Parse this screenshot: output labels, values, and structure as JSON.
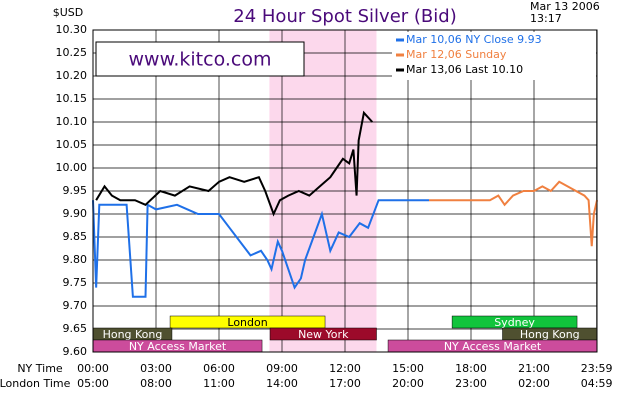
{
  "chart_data": {
    "type": "line",
    "title": "24 Hour Spot Silver (Bid)",
    "y_unit": "$USD",
    "date": "Mar 13 2006",
    "time": "13:17",
    "watermark": "www.kitco.com",
    "xlim": [
      0,
      24
    ],
    "ylim": [
      9.6,
      10.3
    ],
    "yticks": [
      {
        "value": 9.6,
        "label": "9.60"
      },
      9.65,
      {
        "value": 9.7,
        "label": "9.70"
      },
      9.75,
      {
        "value": 9.8,
        "label": "9.80"
      },
      9.85,
      {
        "value": 9.9,
        "label": "9.90"
      },
      9.95,
      {
        "value": 10.0,
        "label": "10.00"
      },
      10.05,
      {
        "value": 10.1,
        "label": "10.10"
      },
      10.15,
      {
        "value": 10.2,
        "label": "10.20"
      },
      10.25,
      {
        "value": 10.3,
        "label": "10.30"
      }
    ],
    "xticks": [
      {
        "value": 0,
        "label": "00:00"
      },
      {
        "value": 3,
        "label": "03:00"
      },
      {
        "value": 6,
        "label": "06:00"
      },
      {
        "value": 9,
        "label": "09:00"
      },
      {
        "value": 12,
        "label": "12:00"
      },
      {
        "value": 15,
        "label": "15:00"
      },
      {
        "value": 18,
        "label": "18:00"
      },
      {
        "value": 21,
        "label": "21:00"
      },
      {
        "value": 23.983,
        "label": "23:59"
      }
    ],
    "x_row_label": "NY Time",
    "x2_row_label": "London Time",
    "x2_tick_labels": [
      "05:00",
      "08:00",
      "11:00",
      "14:00",
      "17:00",
      "20:00",
      "23:00",
      "02:00",
      "04:59"
    ],
    "grid": true,
    "highlight": [
      8.4,
      13.5
    ],
    "series": [
      {
        "name": "Mar 10,06 NY Close 9.93",
        "color": "#1f70e8",
        "x": [
          0,
          0.15,
          0.3,
          1.6,
          1.9,
          2.5,
          2.6,
          3.0,
          4.0,
          4.5,
          5.0,
          6.0,
          6.5,
          7.0,
          7.5,
          8.0,
          8.3,
          8.5,
          8.8,
          9.0,
          9.3,
          9.6,
          9.9,
          10.1,
          10.5,
          10.9,
          11.3,
          11.7,
          12.2,
          12.7,
          13.1,
          13.6,
          16.0
        ],
        "values": [
          9.93,
          9.74,
          9.92,
          9.92,
          9.72,
          9.72,
          9.92,
          9.91,
          9.92,
          9.91,
          9.9,
          9.9,
          9.87,
          9.84,
          9.81,
          9.82,
          9.8,
          9.78,
          9.84,
          9.82,
          9.78,
          9.74,
          9.76,
          9.8,
          9.85,
          9.9,
          9.82,
          9.86,
          9.85,
          9.88,
          9.87,
          9.93,
          9.93
        ]
      },
      {
        "name": "Mar 12,06 Sunday",
        "color": "#f08040",
        "x": [
          16.0,
          18.9,
          19.3,
          19.6,
          20.0,
          20.5,
          21.0,
          21.4,
          21.8,
          22.2,
          22.6,
          23.0,
          23.4,
          23.6,
          23.75,
          23.85,
          24.0
        ],
        "values": [
          9.93,
          9.93,
          9.94,
          9.92,
          9.94,
          9.95,
          9.95,
          9.96,
          9.95,
          9.97,
          9.96,
          9.95,
          9.94,
          9.93,
          9.83,
          9.9,
          9.93
        ]
      },
      {
        "name": "Mar 13,06 Last 10.10",
        "color": "#000000",
        "x": [
          0.15,
          0.55,
          0.9,
          1.3,
          2.0,
          2.5,
          3.2,
          3.9,
          4.6,
          5.5,
          6.0,
          6.5,
          7.2,
          7.9,
          8.2,
          8.6,
          8.9,
          9.3,
          9.8,
          10.3,
          10.8,
          11.3,
          11.6,
          11.9,
          12.2,
          12.4,
          12.55,
          12.65,
          12.9,
          13.3
        ],
        "values": [
          9.93,
          9.96,
          9.94,
          9.93,
          9.93,
          9.92,
          9.95,
          9.94,
          9.96,
          9.95,
          9.97,
          9.98,
          9.97,
          9.98,
          9.95,
          9.9,
          9.93,
          9.94,
          9.95,
          9.94,
          9.96,
          9.98,
          10.0,
          10.02,
          10.01,
          10.04,
          9.94,
          10.06,
          10.12,
          10.1
        ]
      }
    ],
    "session_rows": [
      [
        {
          "label": "London",
          "start": 3.67,
          "end": 11.05,
          "color": "#ffff00",
          "text_color": "#000000"
        },
        {
          "label": "Sydney",
          "start": 17.1,
          "end": 23.05,
          "color": "#11c43c",
          "text_color": "#ffffff"
        }
      ],
      [
        {
          "label": "Hong Kong",
          "start": 0,
          "end": 3.76,
          "color": "#4f5030",
          "text_color": "#ffffff"
        },
        {
          "label": "New York",
          "start": 8.43,
          "end": 13.5,
          "color": "#9c0a2a",
          "text_color": "#ffffff"
        },
        {
          "label": "Hong Kong",
          "start": 19.5,
          "end": 24,
          "color": "#4f5030",
          "text_color": "#ffffff"
        }
      ],
      [
        {
          "label": "NY Access Market",
          "start": 0,
          "end": 8.05,
          "color": "#cc4c9c",
          "text_color": "#ffffff"
        },
        {
          "label": "NY Access Market",
          "start": 14.05,
          "end": 24,
          "color": "#cc4c9c",
          "text_color": "#ffffff"
        }
      ]
    ]
  }
}
